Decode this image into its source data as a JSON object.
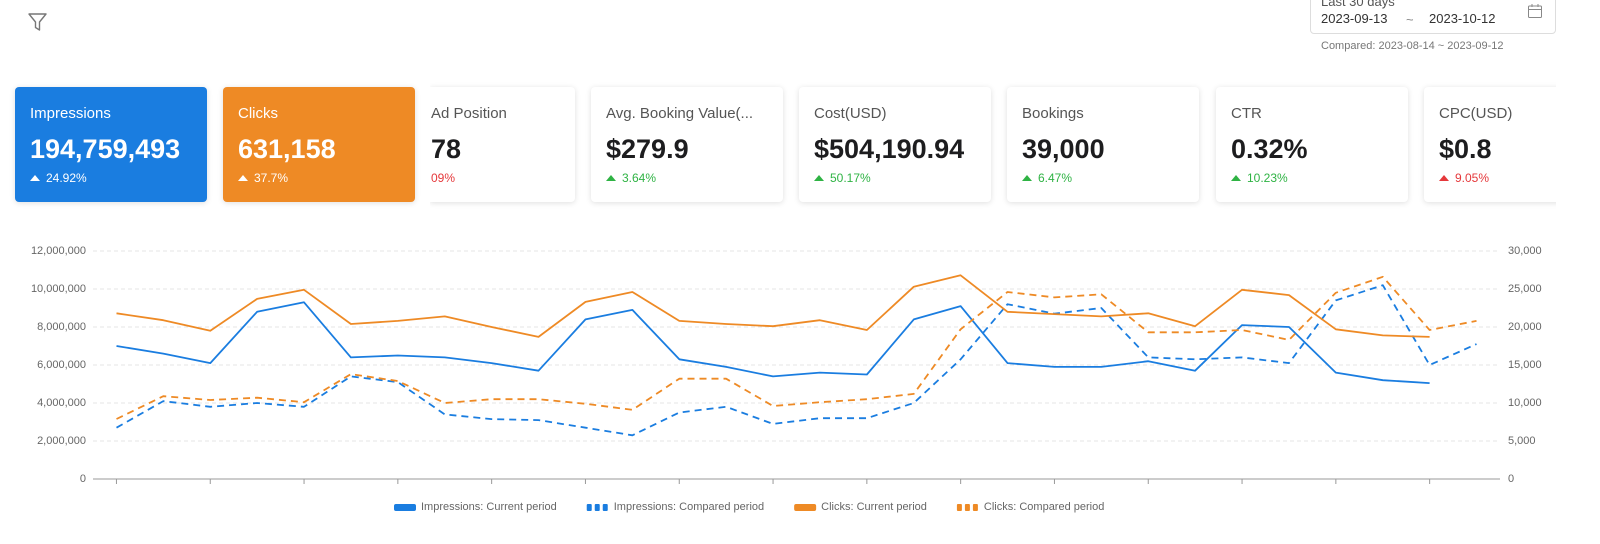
{
  "header": {
    "range_label": "Last 30 days",
    "start": "2023-09-13",
    "separator": "~",
    "end": "2023-10-12",
    "compared": "Compared: 2023-08-14 ~ 2023-09-12"
  },
  "cards": [
    {
      "title": "Impressions",
      "value": "194,759,493",
      "change": "24.92%",
      "arrow": "up",
      "change_color": "#ffffff",
      "background": "#1a7de0"
    },
    {
      "title": "Clicks",
      "value": "631,158",
      "change": "37.7%",
      "arrow": "up",
      "change_color": "#ffffff",
      "background": "#ee8a25"
    },
    {
      "title": "Ad Position",
      "value": "78",
      "change": "09%",
      "change_color": "#e5383b",
      "background": "#ffffff"
    },
    {
      "title": "Avg. Booking Value(...",
      "value": "$279.9",
      "change": "3.64%",
      "arrow": "up",
      "change_color": "#2fb344",
      "background": "#ffffff"
    },
    {
      "title": "Cost(USD)",
      "value": "$504,190.94",
      "change": "50.17%",
      "arrow": "up",
      "change_color": "#2fb344",
      "background": "#ffffff"
    },
    {
      "title": "Bookings",
      "value": "39,000",
      "change": "6.47%",
      "arrow": "up",
      "change_color": "#2fb344",
      "background": "#ffffff"
    },
    {
      "title": "CTR",
      "value": "0.32%",
      "change": "10.23%",
      "arrow": "up",
      "change_color": "#2fb344",
      "background": "#ffffff"
    },
    {
      "title": "CPC(USD)",
      "value": "$0.8",
      "change": "9.05%",
      "arrow": "up",
      "change_color": "#e5383b",
      "background": "#ffffff"
    }
  ],
  "chart_data": {
    "type": "line",
    "categories": [
      null,
      null,
      null,
      null,
      null,
      null,
      null,
      null,
      null,
      null,
      null,
      null,
      null,
      null,
      null,
      null,
      null,
      null,
      null,
      null,
      null,
      null,
      null,
      null,
      null,
      null,
      null,
      null,
      null,
      null
    ],
    "ylim": [
      0,
      12000000
    ],
    "yticks": [
      0,
      {
        "value": 2000000,
        "label": "2,000,000"
      },
      {
        "value": 4000000,
        "label": "4,000,000"
      },
      {
        "value": 6000000,
        "label": "6,000,000"
      },
      {
        "value": 8000000,
        "label": "8,000,000"
      },
      {
        "value": 10000000,
        "label": "10,000,000"
      },
      {
        "value": 12000000,
        "label": "12,000,000"
      }
    ],
    "y2lim": [
      0,
      30000
    ],
    "y2ticks": [
      0,
      {
        "value": 5000,
        "label": "5,000"
      },
      {
        "value": 10000,
        "label": "10,000"
      },
      {
        "value": 15000,
        "label": "15,000"
      },
      {
        "value": 20000,
        "label": "20,000"
      },
      {
        "value": 25000,
        "label": "25,000"
      },
      {
        "value": 30000,
        "label": "30,000"
      }
    ],
    "grid": true,
    "series": [
      {
        "name": "Impressions: Current period",
        "color": "#1a7de0",
        "dashed": false,
        "values": [
          7000000,
          6600000,
          6100000,
          8800000,
          9300000,
          6400000,
          6500000,
          6400000,
          6100000,
          5700000,
          8400000,
          8900000,
          6300000,
          5900000,
          5400000,
          5600000,
          5500000,
          8400000,
          9100000,
          6100000,
          5900000,
          5900000,
          6200000,
          5700000,
          8100000,
          8000000,
          5600000,
          5200000,
          5050000,
          null
        ]
      },
      {
        "name": "Impressions: Compared period",
        "color": "#1a7de0",
        "dashed": true,
        "values": [
          2700000,
          4100000,
          3800000,
          4000000,
          3800000,
          5400000,
          5100000,
          3400000,
          3150000,
          3100000,
          2700000,
          2300000,
          3500000,
          3800000,
          2900000,
          3200000,
          3200000,
          4000000,
          6300000,
          9200000,
          8700000,
          9000000,
          6400000,
          6300000,
          6400000,
          6100000,
          9400000,
          10200000,
          6000000,
          7100000
        ]
      },
      {
        "name": "Clicks: Current period",
        "color": "#ee8a25",
        "dashed": false,
        "axis": "y2",
        "values": [
          21800,
          20900,
          19500,
          23700,
          24900,
          20400,
          20800,
          21400,
          20000,
          18700,
          23300,
          24600,
          20800,
          20400,
          20100,
          20900,
          19600,
          25300,
          26800,
          22000,
          21700,
          21400,
          21800,
          20100,
          24900,
          24200,
          19700,
          18900,
          18700,
          null
        ]
      },
      {
        "name": "Clicks: Compared period",
        "color": "#ee8a25",
        "dashed": true,
        "axis": "y2",
        "values": [
          7900,
          10900,
          10400,
          10700,
          10100,
          13800,
          12900,
          10000,
          10500,
          10500,
          9900,
          9100,
          13200,
          13200,
          9600,
          10100,
          10500,
          11200,
          19700,
          24600,
          23900,
          24300,
          19300,
          19300,
          19600,
          18300,
          24500,
          26600,
          19600,
          20800
        ]
      }
    ]
  }
}
